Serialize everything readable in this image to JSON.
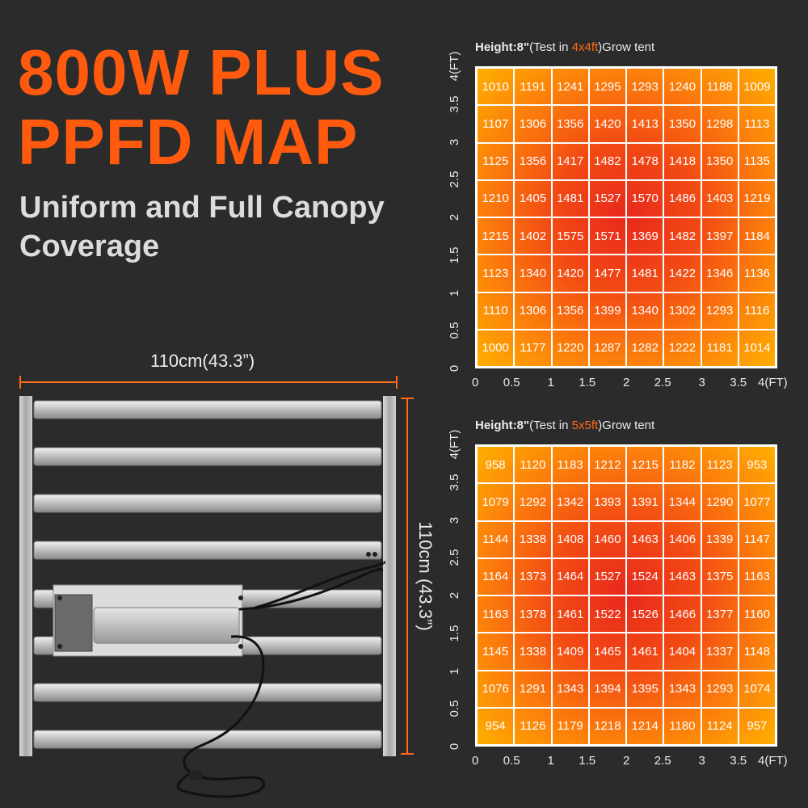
{
  "title_line1": "800W PLUS",
  "title_line2": "PPFD MAP",
  "subtitle_line1": "Uniform and Full Canopy",
  "subtitle_line2": "Coverage",
  "dimension_width": "110cm(43.3”)",
  "dimension_height": "110cm (43.3”)",
  "map_4x4": {
    "heading_bold": "Height:8\"",
    "heading_pre": "(Test in ",
    "heading_accent": "4x4ft",
    "heading_post": ")Grow tent",
    "y_unit": "4(FT)",
    "x_unit": "4(FT)",
    "y_ticks": [
      "3.5",
      "3",
      "2.5",
      "2",
      "1.5",
      "1",
      "0.5",
      "0"
    ],
    "x_ticks": [
      "0",
      "0.5",
      "1",
      "1.5",
      "2",
      "2.5",
      "3",
      "3.5"
    ],
    "rows": [
      [
        1010,
        1191,
        1241,
        1295,
        1293,
        1240,
        1188,
        1009
      ],
      [
        1107,
        1306,
        1356,
        1420,
        1413,
        1350,
        1298,
        1113
      ],
      [
        1125,
        1356,
        1417,
        1482,
        1478,
        1418,
        1350,
        1135
      ],
      [
        1210,
        1405,
        1481,
        1527,
        1570,
        1486,
        1403,
        1219
      ],
      [
        1215,
        1402,
        1575,
        1571,
        1369,
        1482,
        1397,
        1184
      ],
      [
        1123,
        1340,
        1420,
        1477,
        1481,
        1422,
        1346,
        1136
      ],
      [
        1110,
        1306,
        1356,
        1399,
        1340,
        1302,
        1293,
        1116
      ],
      [
        1000,
        1177,
        1220,
        1287,
        1282,
        1222,
        1181,
        1014
      ]
    ]
  },
  "map_5x5": {
    "heading_bold": "Height:8\"",
    "heading_pre": "(Test in ",
    "heading_accent": "5x5ft",
    "heading_post": ")Grow tent",
    "y_unit": "4(FT)",
    "x_unit": "4(FT)",
    "y_ticks": [
      "3.5",
      "3",
      "2.5",
      "2",
      "1.5",
      "1",
      "0.5",
      "0"
    ],
    "x_ticks": [
      "0",
      "0.5",
      "1",
      "1.5",
      "2",
      "2.5",
      "3",
      "3.5"
    ],
    "rows": [
      [
        958,
        1120,
        1183,
        1212,
        1215,
        1182,
        1123,
        953
      ],
      [
        1079,
        1292,
        1342,
        1393,
        1391,
        1344,
        1290,
        1077
      ],
      [
        1144,
        1338,
        1408,
        1460,
        1463,
        1406,
        1339,
        1147
      ],
      [
        1164,
        1373,
        1464,
        1527,
        1524,
        1463,
        1375,
        1163
      ],
      [
        1163,
        1378,
        1461,
        1522,
        1526,
        1466,
        1377,
        1160
      ],
      [
        1145,
        1338,
        1409,
        1465,
        1461,
        1404,
        1337,
        1148
      ],
      [
        1076,
        1291,
        1343,
        1394,
        1395,
        1343,
        1293,
        1074
      ],
      [
        954,
        1126,
        1179,
        1218,
        1214,
        1180,
        1124,
        957
      ]
    ]
  },
  "colors": {
    "accent": "#ff5a0e",
    "map_center": "#e8281c",
    "map_edge": "#ffb000"
  }
}
